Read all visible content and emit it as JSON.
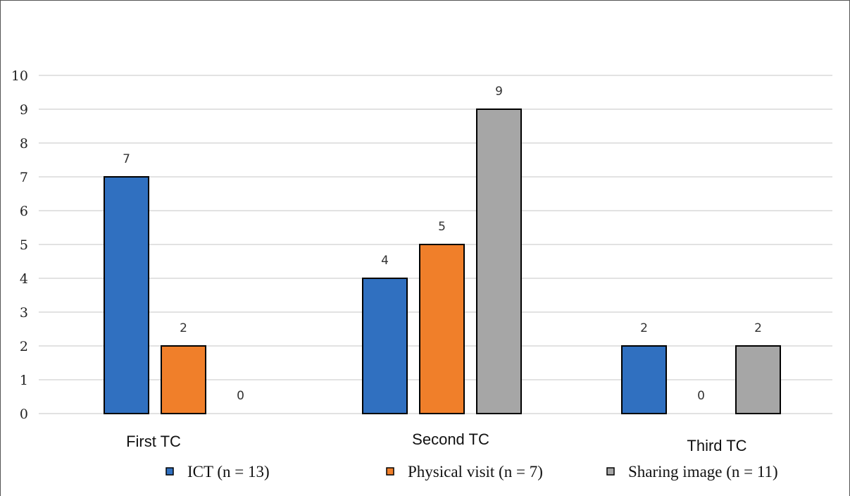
{
  "chart_data": {
    "type": "bar",
    "categories": [
      "First TC",
      "Second TC",
      "Third TC"
    ],
    "series": [
      {
        "name": "ICT (n = 13)",
        "values": [
          7,
          4,
          2
        ],
        "color": "#3070c0"
      },
      {
        "name": "Physical visit (n = 7)",
        "values": [
          2,
          5,
          0
        ],
        "color": "#f07f2a"
      },
      {
        "name": "Sharing image (n = 11)",
        "values": [
          0,
          9,
          2
        ],
        "color": "#a6a6a6"
      }
    ],
    "ylim": [
      0,
      10
    ],
    "yticks": [
      "0",
      "1",
      "2",
      "3",
      "4",
      "5",
      "6",
      "7",
      "8",
      "9",
      "10"
    ],
    "data_labels": [
      [
        "7",
        "2",
        "0"
      ],
      [
        "4",
        "5",
        "9"
      ],
      [
        "2",
        "0",
        "2"
      ]
    ],
    "grid": true,
    "legend_position": "bottom",
    "title": "",
    "xlabel": "",
    "ylabel": ""
  }
}
